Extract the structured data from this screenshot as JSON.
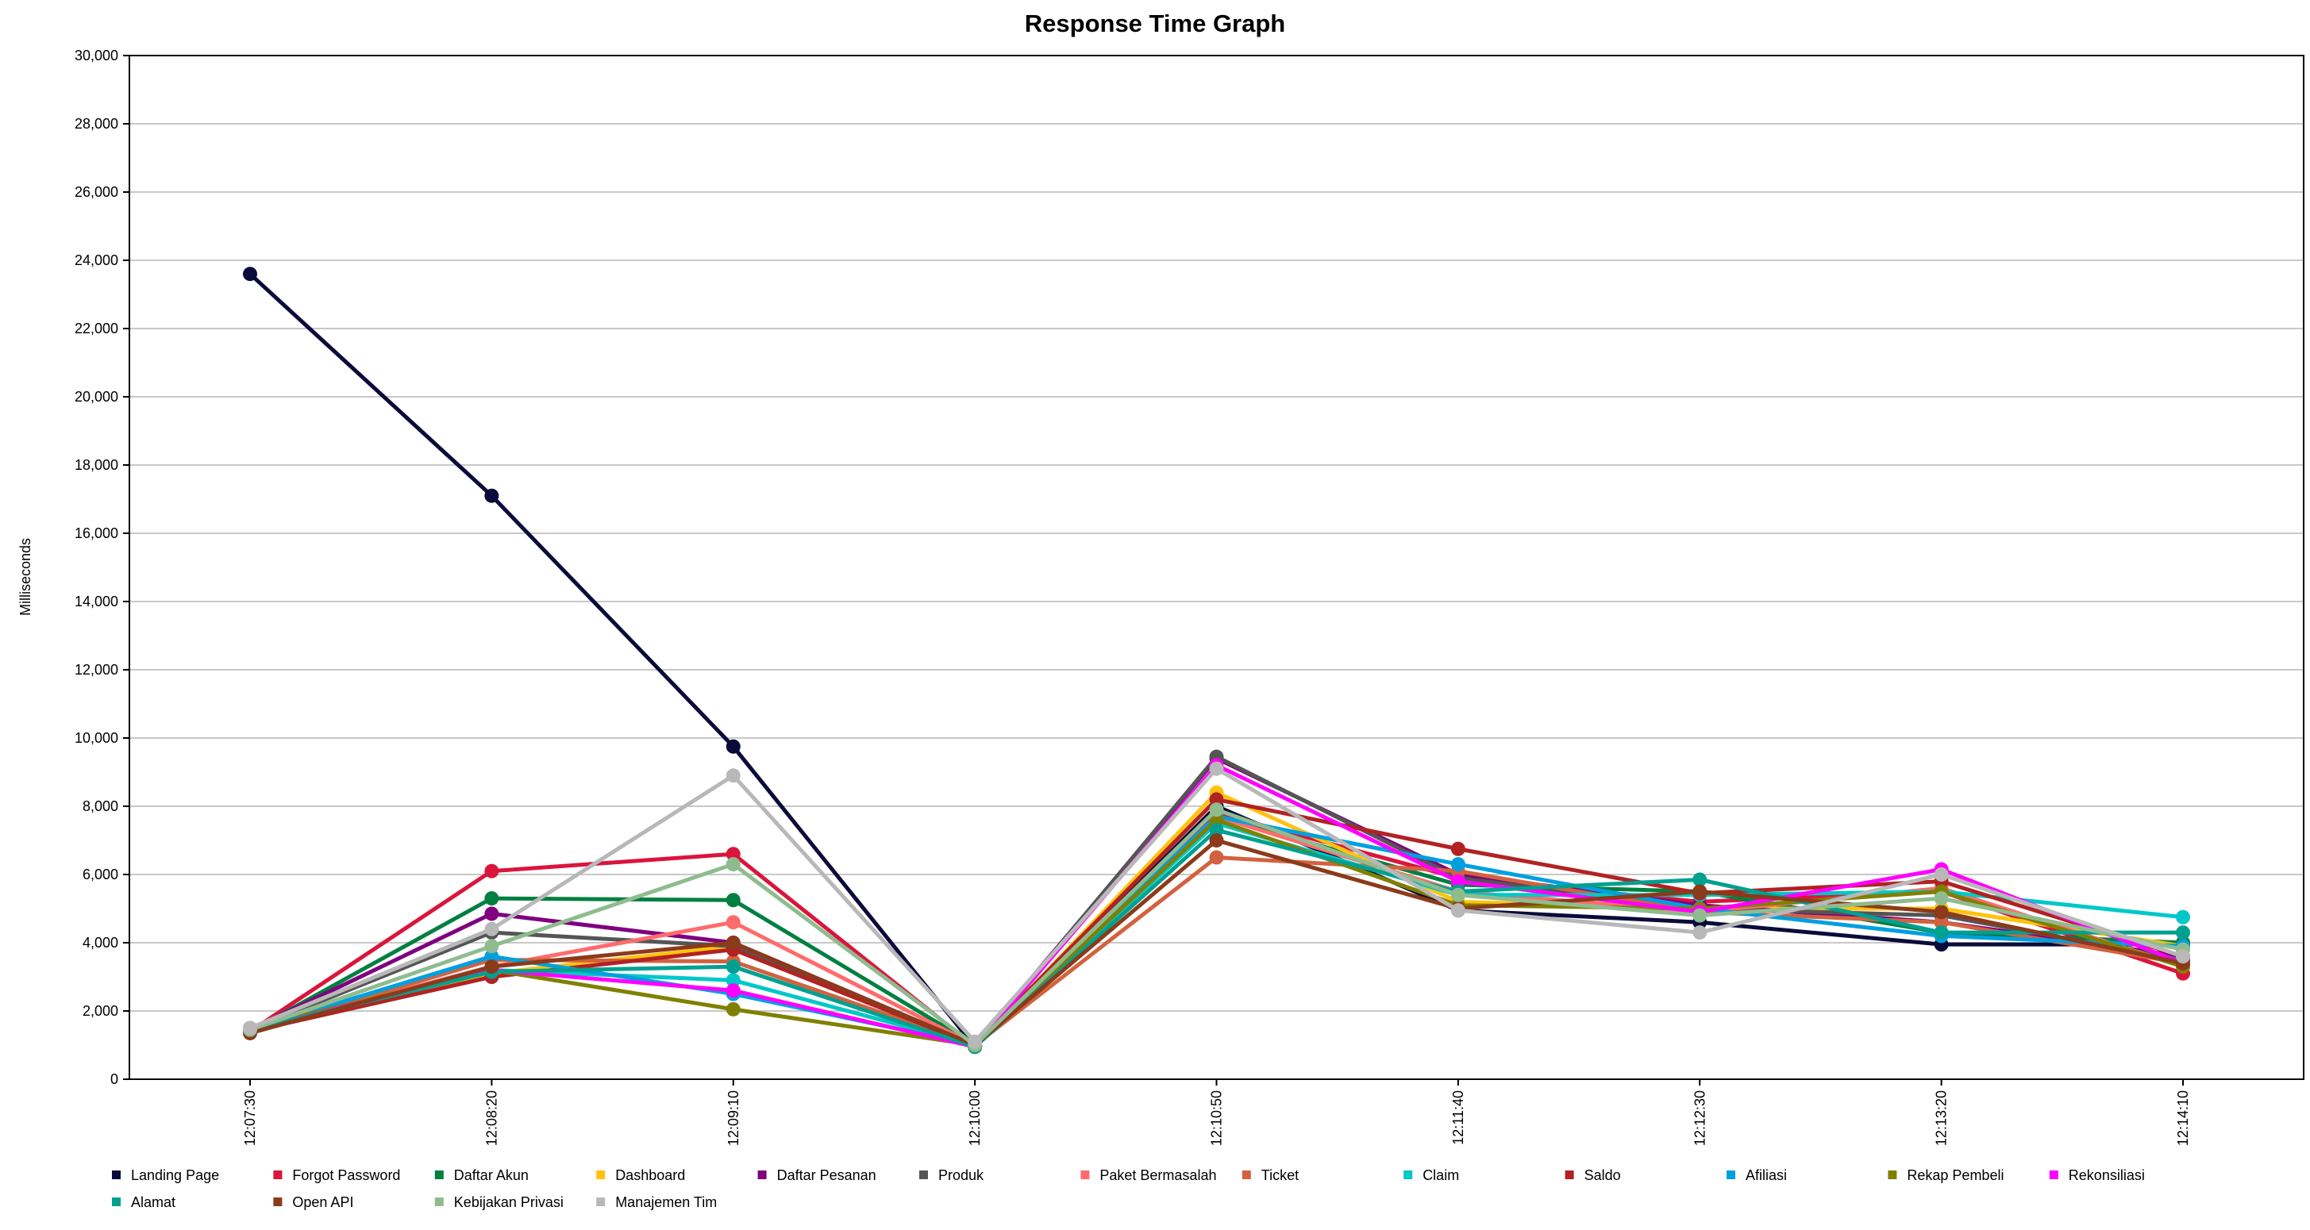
{
  "chart_data": {
    "type": "line",
    "title": "Response Time Graph",
    "ylabel": "Milliseconds",
    "xlabel": "",
    "ylim": [
      0,
      30000
    ],
    "y_ticks": [
      "0",
      "2,000",
      "4,000",
      "6,000",
      "8,000",
      "10,000",
      "12,000",
      "14,000",
      "16,000",
      "18,000",
      "20,000",
      "22,000",
      "24,000",
      "26,000",
      "28,000",
      "30,000"
    ],
    "categories": [
      "12:07:30",
      "12:08:20",
      "12:09:10",
      "12:10:00",
      "12:10:50",
      "12:11:40",
      "12:12:30",
      "12:13:20",
      "12:14:10"
    ],
    "grid": true,
    "legend_position": "bottom",
    "series": [
      {
        "name": "Landing Page",
        "color": "#0b0b3b",
        "values": [
          23600,
          17100,
          9750,
          950,
          8000,
          4950,
          4600,
          3950,
          3950
        ]
      },
      {
        "name": "Forgot Password",
        "color": "#dc143c",
        "values": [
          1400,
          6100,
          6600,
          950,
          7800,
          5900,
          5200,
          5500,
          3100
        ]
      },
      {
        "name": "Daftar Akun",
        "color": "#008040",
        "values": [
          1400,
          5300,
          5250,
          1000,
          7700,
          5700,
          5500,
          4300,
          4000
        ]
      },
      {
        "name": "Dashboard",
        "color": "#ffc20e",
        "values": [
          1450,
          3100,
          3900,
          950,
          8400,
          5200,
          5000,
          5000,
          3900
        ]
      },
      {
        "name": "Daftar Pesanan",
        "color": "#800080",
        "values": [
          1450,
          4850,
          4000,
          1000,
          9400,
          6000,
          5100,
          4600,
          3600
        ]
      },
      {
        "name": "Produk",
        "color": "#555555",
        "values": [
          1450,
          4300,
          3900,
          950,
          9450,
          5900,
          5000,
          4800,
          3500
        ]
      },
      {
        "name": "Paket Bermasalah",
        "color": "#ff6b6b",
        "values": [
          1450,
          3300,
          4600,
          1000,
          7700,
          5500,
          4900,
          5600,
          3300
        ]
      },
      {
        "name": "Ticket",
        "color": "#d2623f",
        "values": [
          1400,
          3500,
          3450,
          1000,
          6500,
          6100,
          4900,
          4600,
          3400
        ]
      },
      {
        "name": "Claim",
        "color": "#00c8c8",
        "values": [
          1450,
          3200,
          2900,
          1000,
          7500,
          5400,
          5400,
          5500,
          4750
        ]
      },
      {
        "name": "Saldo",
        "color": "#b22222",
        "values": [
          1400,
          3000,
          3800,
          1000,
          8200,
          6750,
          5450,
          5800,
          3600
        ]
      },
      {
        "name": "Afiliasi",
        "color": "#00a0e0",
        "values": [
          1450,
          3600,
          2500,
          1000,
          7700,
          6300,
          5000,
          4200,
          3900
        ]
      },
      {
        "name": "Rekap Pembeli",
        "color": "#808000",
        "values": [
          1500,
          3200,
          2050,
          1000,
          7600,
          5100,
          5000,
          5500,
          3300
        ]
      },
      {
        "name": "Rekonsiliasi",
        "color": "#ff00ff",
        "values": [
          1450,
          3200,
          2600,
          950,
          9200,
          5800,
          4900,
          6150,
          3400
        ]
      },
      {
        "name": "Alamat",
        "color": "#00a090",
        "values": [
          1450,
          3150,
          3300,
          950,
          7300,
          5500,
          5850,
          4300,
          4300
        ]
      },
      {
        "name": "Open API",
        "color": "#8b3a1a",
        "values": [
          1350,
          3300,
          4000,
          1000,
          7000,
          5000,
          5500,
          4900,
          3400
        ]
      },
      {
        "name": "Kebijakan Privasi",
        "color": "#8fbc8f",
        "values": [
          1450,
          3900,
          6300,
          1000,
          7900,
          5400,
          4800,
          5300,
          3800
        ]
      },
      {
        "name": "Manajemen Tim",
        "color": "#b8b8b8",
        "values": [
          1500,
          4400,
          8900,
          1100,
          9100,
          4950,
          4300,
          6000,
          3600
        ]
      }
    ]
  }
}
